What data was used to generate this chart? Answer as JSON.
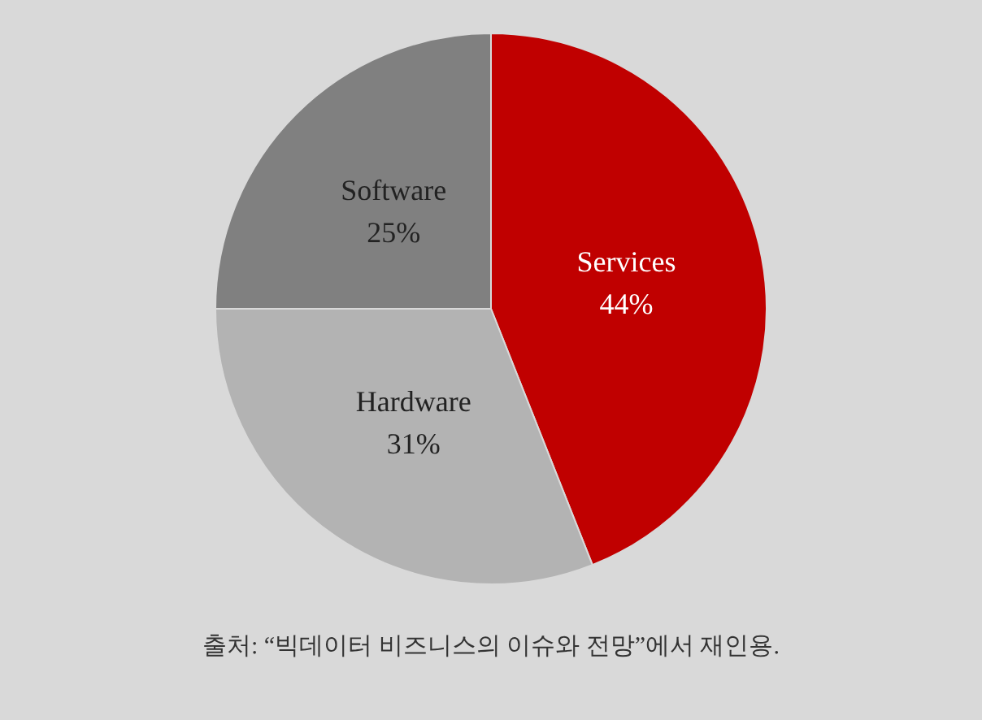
{
  "chart_data": {
    "type": "pie",
    "categories": [
      "Services",
      "Hardware",
      "Software"
    ],
    "values": [
      44,
      31,
      25
    ],
    "colors": [
      "#c00000",
      "#b3b3b3",
      "#808080"
    ],
    "value_labels": [
      "44%",
      "31%",
      "25%"
    ],
    "legend": false,
    "annotations": [
      "출처: “빅데이터 비즈니스의 이슈와 전망”에서 재인용."
    ]
  }
}
